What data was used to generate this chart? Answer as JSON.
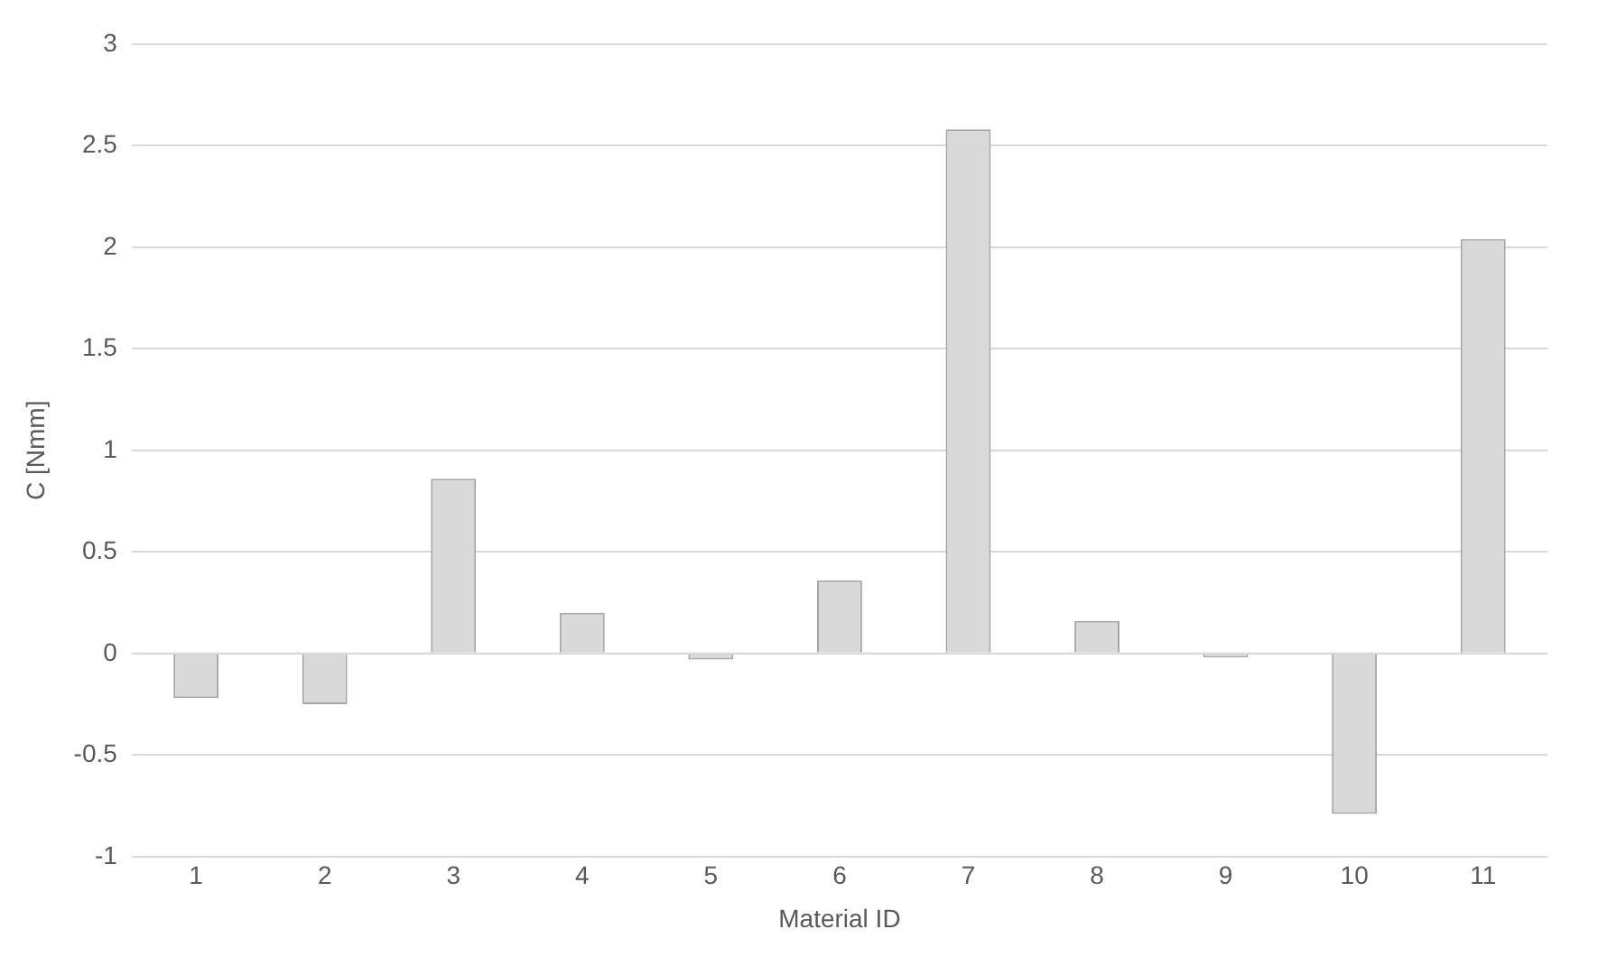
{
  "chart_data": {
    "type": "bar",
    "xlabel": "Material ID",
    "ylabel": "C [Nmm]",
    "categories": [
      "1",
      "2",
      "3",
      "4",
      "5",
      "6",
      "7",
      "8",
      "9",
      "10",
      "11"
    ],
    "values": [
      -0.22,
      -0.25,
      0.86,
      0.2,
      -0.03,
      0.36,
      2.58,
      0.16,
      -0.02,
      -0.79,
      2.04
    ],
    "color": "#d9d9d9",
    "ylim": [
      -1,
      3
    ],
    "yticks": [
      -1,
      -0.5,
      0,
      0.5,
      1,
      1.5,
      2,
      2.5,
      3
    ],
    "grid": "y"
  }
}
